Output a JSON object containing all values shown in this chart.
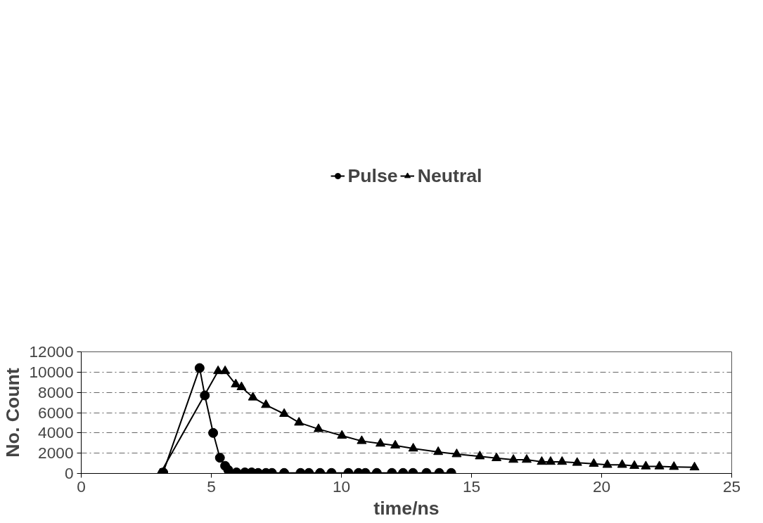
{
  "chart_data": {
    "type": "line",
    "xlabel": "time/ns",
    "ylabel": "No. Count",
    "xlim": [
      0,
      25
    ],
    "xticks": [
      0,
      5,
      10,
      15,
      20,
      25
    ],
    "ylim": [
      0,
      12000
    ],
    "yticks": [
      0,
      2000,
      4000,
      6000,
      8000,
      10000,
      12000
    ],
    "grid": "y",
    "legend": "top",
    "line_style": "solid",
    "series": [
      {
        "name": "Pulse",
        "color": "#000000",
        "marker": "circle",
        "x": [
          3.15,
          4.55,
          4.75,
          5.07,
          5.33,
          5.53,
          5.65,
          5.97,
          6.29,
          6.55,
          6.8,
          7.1,
          7.33,
          7.8,
          8.43,
          8.75,
          9.18,
          9.62,
          10.27,
          10.66,
          10.92,
          11.36,
          11.94,
          12.37,
          12.75,
          13.27,
          13.76,
          14.22
        ],
        "values": [
          100,
          10400,
          7700,
          4000,
          1550,
          750,
          350,
          100,
          100,
          100,
          50,
          50,
          50,
          50,
          50,
          50,
          50,
          50,
          50,
          50,
          50,
          50,
          50,
          50,
          50,
          50,
          50,
          50
        ]
      },
      {
        "name": "Neutral",
        "color": "#000000",
        "marker": "triangle",
        "x": [
          3.04,
          5.26,
          5.53,
          5.94,
          6.16,
          6.6,
          7.1,
          7.8,
          8.37,
          9.12,
          10.02,
          10.78,
          11.5,
          12.07,
          12.76,
          13.72,
          14.43,
          15.32,
          15.96,
          16.61,
          17.12,
          17.7,
          18.04,
          18.48,
          19.06,
          19.7,
          20.22,
          20.79,
          21.26,
          21.7,
          22.22,
          22.78,
          23.57
        ],
        "values": [
          0,
          10100,
          10100,
          8790,
          8520,
          7500,
          6760,
          5880,
          5020,
          4380,
          3730,
          3200,
          2940,
          2760,
          2460,
          2120,
          1900,
          1690,
          1510,
          1350,
          1350,
          1150,
          1150,
          1150,
          1050,
          950,
          850,
          850,
          750,
          700,
          700,
          650,
          600
        ]
      }
    ]
  }
}
